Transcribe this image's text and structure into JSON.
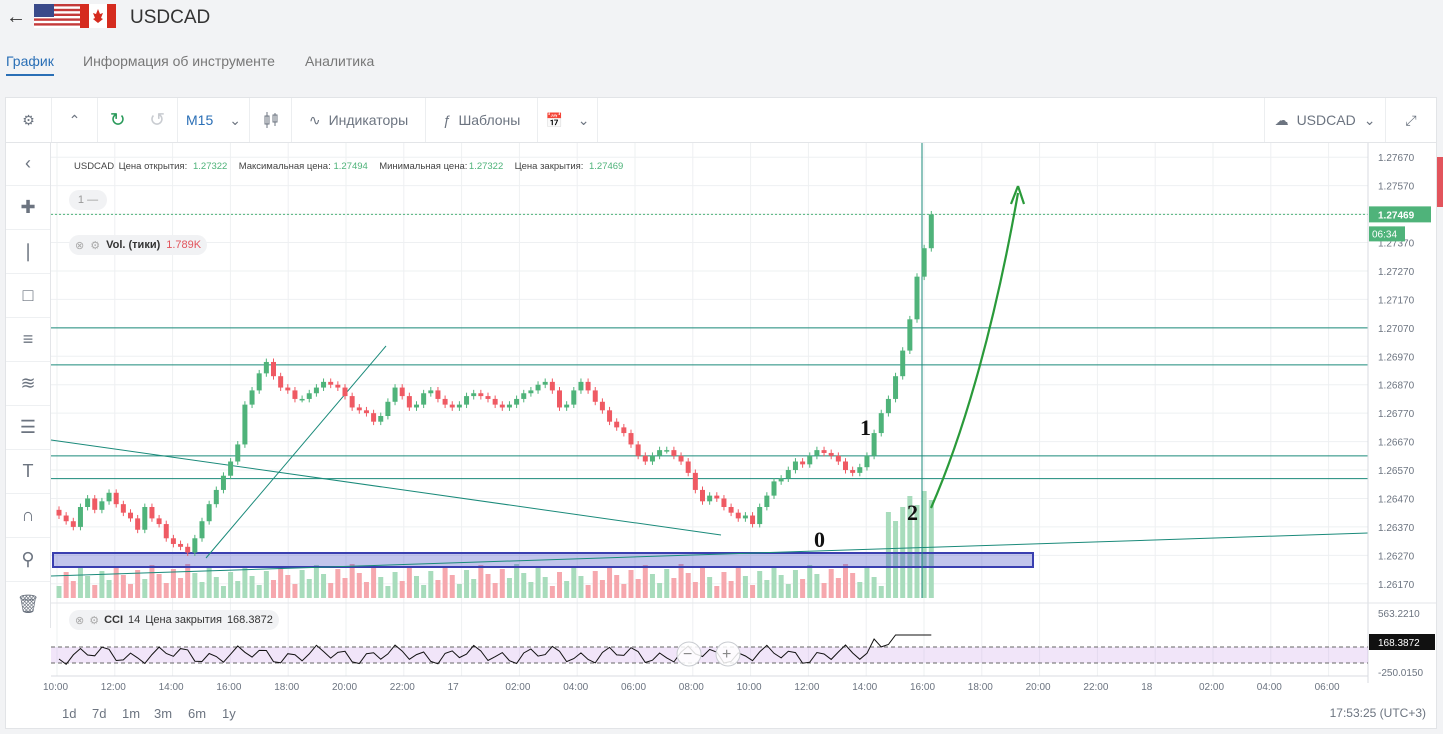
{
  "header": {
    "symbol": "USDCAD",
    "back_icon": "arrow-left-icon"
  },
  "tabs": [
    {
      "label": "График",
      "active": true
    },
    {
      "label": "Информация об инструменте",
      "active": false
    },
    {
      "label": "Аналитика",
      "active": false
    }
  ],
  "toolbar": {
    "timeframe": "M15",
    "indicators_label": "Индикаторы",
    "templates_label": "Шаблоны",
    "symbol_select": "USDCAD"
  },
  "chart_info": {
    "symbol": "USDCAD",
    "open_label": "Цена открытия:",
    "open": "1.27322",
    "high_label": "Максимальная цена:",
    "high": "1.27494",
    "low_label": "Минимальная цена:",
    "low": "1.27322",
    "close_label": "Цена закрытия:",
    "close": "1.27469"
  },
  "layer_badge": "1 —",
  "volume_legend": {
    "label": "Vol. (тики)",
    "value": "1.789K"
  },
  "cci_legend": {
    "label": "CCI",
    "period": "14",
    "source": "Цена закрытия",
    "value": "168.3872"
  },
  "price_axis": {
    "ticks": [
      "1.27670",
      "1.27570",
      "1.27470",
      "1.27370",
      "1.27270",
      "1.27170",
      "1.27070",
      "1.26970",
      "1.26870",
      "1.26770",
      "1.26670",
      "1.26570",
      "1.26470",
      "1.26370",
      "1.26270",
      "1.26170"
    ],
    "current_price": "1.27469",
    "countdown": "06:34"
  },
  "cci_axis": {
    "top": "563.2210",
    "current": "168.3872",
    "bottom": "-250.0150"
  },
  "time_axis": [
    "10:00",
    "12:00",
    "14:00",
    "16:00",
    "18:00",
    "20:00",
    "22:00",
    "17",
    "02:00",
    "04:00",
    "06:00",
    "08:00",
    "10:00",
    "12:00",
    "14:00",
    "16:00",
    "18:00",
    "20:00",
    "22:00",
    "18",
    "02:00",
    "04:00",
    "06:00"
  ],
  "annotations": [
    "0",
    "1",
    "2"
  ],
  "periods": [
    "1d",
    "7d",
    "1m",
    "3m",
    "6m",
    "1y"
  ],
  "clock": "17:53:25 (UTC+3)",
  "colors": {
    "bull": "#4fb37a",
    "bear": "#ef5a63",
    "line": "#1a8a7a",
    "zone": "#3a3fb0",
    "arrow": "#2a9a3a",
    "accent": "#2a6fb6"
  },
  "chart_data": {
    "type": "candlestick",
    "symbol": "USDCAD",
    "timeframe": "M15",
    "ylim": [
      1.2612,
      1.2772
    ],
    "closes": [
      1.2641,
      1.2639,
      1.2637,
      1.2644,
      1.2647,
      1.2643,
      1.2646,
      1.2649,
      1.2645,
      1.2642,
      1.264,
      1.2636,
      1.2644,
      1.264,
      1.2638,
      1.2633,
      1.2631,
      1.263,
      1.2628,
      1.2633,
      1.2639,
      1.2645,
      1.265,
      1.2655,
      1.266,
      1.2666,
      1.268,
      1.2685,
      1.2691,
      1.2695,
      1.269,
      1.2686,
      1.2685,
      1.2682,
      1.2682,
      1.2684,
      1.2686,
      1.2688,
      1.2687,
      1.2686,
      1.2683,
      1.2679,
      1.2678,
      1.2677,
      1.2674,
      1.2676,
      1.2681,
      1.2686,
      1.2683,
      1.2679,
      1.268,
      1.2684,
      1.2685,
      1.2682,
      1.268,
      1.2679,
      1.268,
      1.2683,
      1.2684,
      1.2683,
      1.2682,
      1.268,
      1.2679,
      1.268,
      1.2682,
      1.2684,
      1.2685,
      1.2687,
      1.2688,
      1.2685,
      1.2679,
      1.268,
      1.2685,
      1.2688,
      1.2685,
      1.2681,
      1.2678,
      1.2674,
      1.2672,
      1.267,
      1.2666,
      1.2662,
      1.266,
      1.2662,
      1.2664,
      1.2664,
      1.2662,
      1.266,
      1.2656,
      1.265,
      1.2646,
      1.2648,
      1.2647,
      1.2644,
      1.2642,
      1.264,
      1.2641,
      1.2638,
      1.2644,
      1.2648,
      1.2653,
      1.2654,
      1.2657,
      1.266,
      1.2659,
      1.2662,
      1.2664,
      1.2663,
      1.2662,
      1.266,
      1.2657,
      1.2656,
      1.2658,
      1.2662,
      1.267,
      1.2677,
      1.2682,
      1.269,
      1.2699,
      1.271,
      1.2725,
      1.2735,
      1.27469
    ]
  }
}
